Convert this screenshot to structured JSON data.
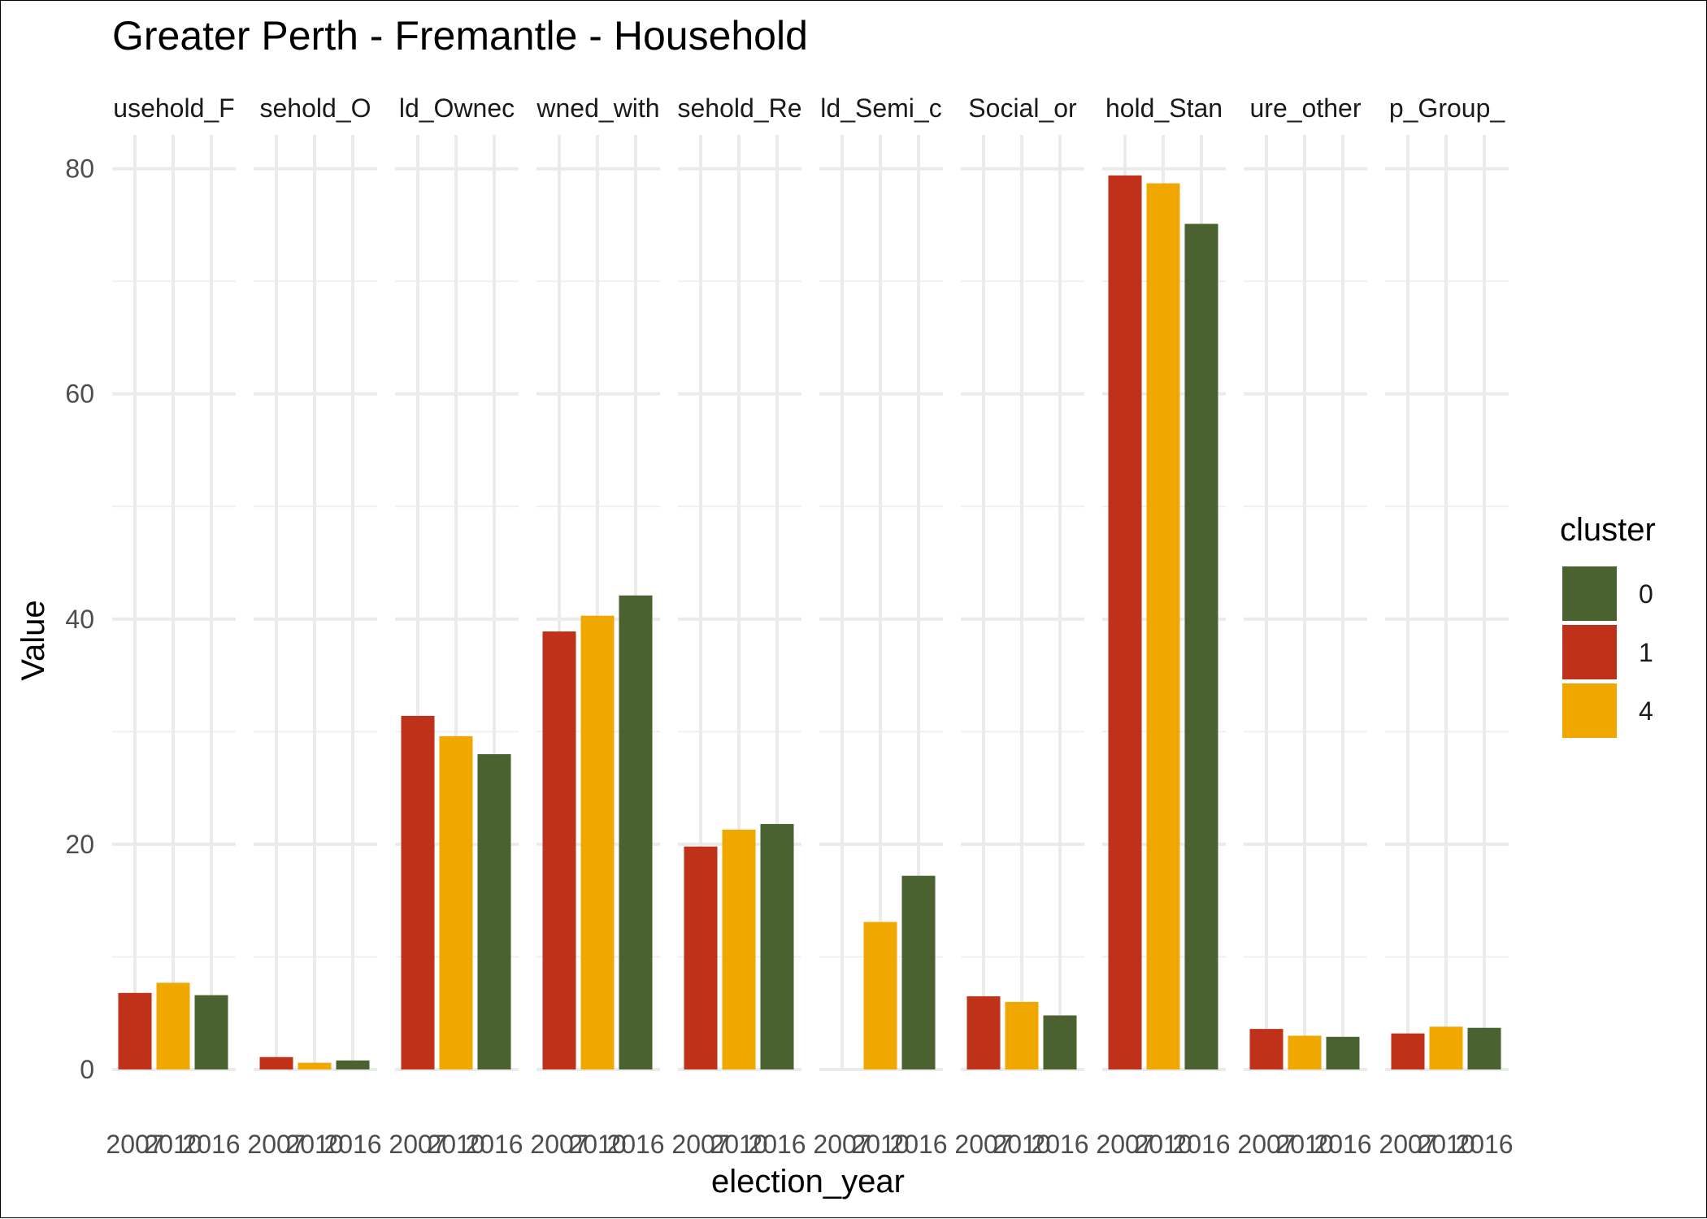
{
  "chart_data": {
    "type": "bar",
    "title": "Greater Perth - Fremantle - Household",
    "xlabel": "election_year",
    "ylabel": "Value",
    "ylim": [
      0,
      83
    ],
    "y_ticks": [
      0,
      20,
      40,
      60,
      80
    ],
    "categories": [
      "2007",
      "2010",
      "2016"
    ],
    "panel_labels": [
      "usehold_F",
      "sehold_O",
      "ld_Ownec",
      "wned_with",
      "sehold_Re",
      "ld_Semi_c",
      "Social_or",
      "hold_Stan",
      "ure_other",
      "p_Group_"
    ],
    "grid": true,
    "legend": {
      "title": "cluster",
      "position": "right",
      "entries": [
        {
          "label": "0",
          "color": "#4a6130"
        },
        {
          "label": "1",
          "color": "#c0311a"
        },
        {
          "label": "4",
          "color": "#f0a800"
        }
      ]
    },
    "bar_cluster": [
      "1",
      "4",
      "0"
    ],
    "colors": {
      "0": "#4a6130",
      "1": "#c0311a",
      "4": "#f0a800"
    },
    "panels": [
      {
        "values": [
          6.8,
          7.7,
          6.6
        ]
      },
      {
        "values": [
          1.1,
          0.6,
          0.8
        ]
      },
      {
        "values": [
          31.4,
          29.6,
          28.0
        ]
      },
      {
        "values": [
          38.9,
          40.3,
          42.1
        ]
      },
      {
        "values": [
          19.8,
          21.3,
          21.8
        ]
      },
      {
        "values": [
          null,
          13.1,
          17.2
        ]
      },
      {
        "values": [
          6.5,
          6.0,
          4.8
        ]
      },
      {
        "values": [
          79.4,
          78.7,
          75.1
        ]
      },
      {
        "values": [
          3.6,
          3.0,
          2.9
        ]
      },
      {
        "values": [
          3.2,
          3.8,
          3.7
        ]
      }
    ]
  }
}
